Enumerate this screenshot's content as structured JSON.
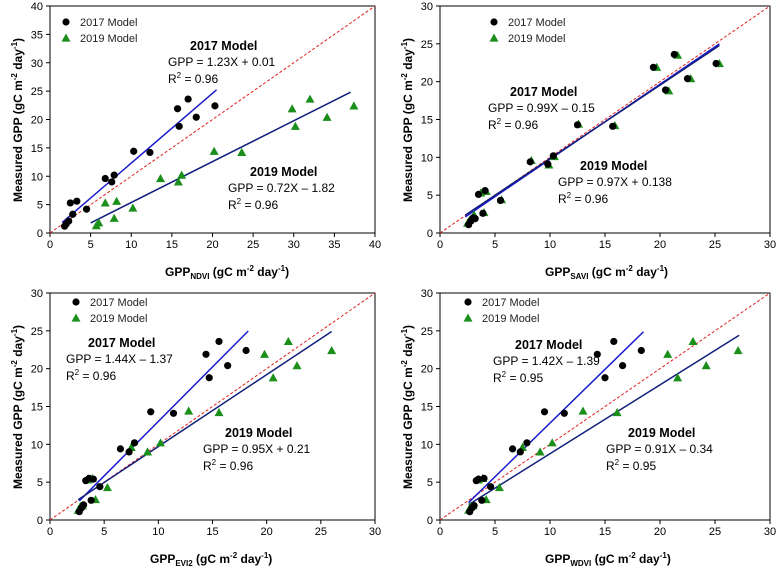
{
  "figure_colors": {
    "s2017": "#000000",
    "s2019": "#1a8f1a",
    "line2017": "#1a1acc",
    "line2019": "#10207a",
    "one_to_one": "#e02020",
    "axis": "#000000"
  },
  "chart_data": [
    {
      "type": "scatter",
      "ylabel": "Measured GPP (gC m-2 day-1)",
      "xlabel_main": "GPP",
      "xlabel_sub": "NDVI",
      "xlabel_rest": " (gC m",
      "xlim": [
        0,
        40
      ],
      "ylim": [
        0,
        40
      ],
      "xticks": [
        0,
        5,
        10,
        15,
        20,
        25,
        30,
        35,
        40
      ],
      "yticks": [
        0,
        5,
        10,
        15,
        20,
        25,
        30,
        35,
        40
      ],
      "legend": [
        "2017 Model",
        "2019 Model"
      ],
      "one_to_one_line": true,
      "series": [
        {
          "name": "2017 Model",
          "marker": "circle",
          "x": [
            1.8,
            2.0,
            2.3,
            2.5,
            2.8,
            3.3,
            4.5,
            6.8,
            7.6,
            7.9,
            10.3,
            12.3,
            15.7,
            15.9,
            17.0,
            18.0,
            20.3
          ],
          "y": [
            1.2,
            1.6,
            2.1,
            5.3,
            3.3,
            5.6,
            4.2,
            9.6,
            9.0,
            10.2,
            14.4,
            14.2,
            21.9,
            18.8,
            23.6,
            20.4,
            22.4
          ]
        },
        {
          "name": "2019 Model",
          "marker": "triangle",
          "x": [
            5.7,
            6.0,
            6.8,
            7.9,
            8.2,
            10.2,
            13.6,
            15.8,
            16.2,
            20.2,
            23.6,
            29.8,
            30.2,
            32.0,
            34.1,
            37.4
          ],
          "y": [
            1.3,
            1.8,
            5.3,
            2.6,
            5.6,
            4.4,
            9.6,
            9.0,
            10.2,
            14.4,
            14.2,
            21.9,
            18.8,
            23.6,
            20.4,
            22.4
          ]
        }
      ],
      "regressions": [
        {
          "name": "2017 Model",
          "slope": 1.23,
          "intercept": 0.01,
          "x_range": [
            1.5,
            20.5
          ],
          "label_title": "2017 Model",
          "label_eq": "GPP = 1.23X + 0.01",
          "label_r2_prefix": "R",
          "label_r2_value": " = 0.96"
        },
        {
          "name": "2019 Model",
          "slope": 0.72,
          "intercept": -1.82,
          "x_range": [
            5,
            37
          ],
          "label_title": "2019 Model",
          "label_eq": "GPP = 0.72X – 1.82",
          "label_r2_prefix": "R",
          "label_r2_value": " = 0.96"
        }
      ]
    },
    {
      "type": "scatter",
      "ylabel": "Measured GPP (gC m-2 day-1)",
      "xlabel_main": "GPP",
      "xlabel_sub": "SAVI",
      "xlabel_rest": " (gC m",
      "xlim": [
        0,
        30
      ],
      "ylim": [
        0,
        30
      ],
      "xticks": [
        0,
        5,
        10,
        15,
        20,
        25,
        30
      ],
      "yticks": [
        0,
        5,
        10,
        15,
        20,
        25,
        30
      ],
      "legend": [
        "2017 Model",
        "2019 Model"
      ],
      "one_to_one_line": true,
      "series": [
        {
          "name": "2017 Model",
          "marker": "circle",
          "x": [
            2.6,
            2.8,
            3.0,
            3.2,
            3.5,
            3.9,
            4.1,
            5.5,
            8.2,
            9.8,
            10.3,
            12.5,
            15.7,
            19.4,
            20.5,
            21.3,
            22.5,
            25.1
          ],
          "y": [
            1.1,
            1.6,
            2.0,
            1.9,
            5.1,
            2.6,
            5.6,
            4.3,
            9.4,
            9.1,
            10.2,
            14.3,
            14.1,
            21.9,
            18.9,
            23.6,
            20.4,
            22.4
          ]
        },
        {
          "name": "2019 Model",
          "marker": "triangle",
          "x": [
            2.5,
            2.7,
            2.9,
            3.1,
            3.7,
            4.0,
            4.2,
            5.6,
            8.3,
            9.9,
            10.4,
            12.6,
            15.9,
            19.7,
            20.8,
            21.6,
            22.8,
            25.4
          ],
          "y": [
            1.3,
            1.7,
            1.9,
            2.4,
            5.3,
            2.7,
            5.5,
            4.4,
            9.6,
            9.0,
            10.1,
            14.4,
            14.2,
            21.9,
            18.8,
            23.5,
            20.4,
            22.4
          ]
        }
      ],
      "regressions": [
        {
          "name": "2017 Model",
          "slope": 0.99,
          "intercept": -0.15,
          "x_range": [
            2.3,
            25.4
          ],
          "label_title": "2017 Model",
          "label_eq": "GPP = 0.99X – 0.15",
          "label_r2_prefix": "R",
          "label_r2_value": " = 0.96"
        },
        {
          "name": "2019 Model",
          "slope": 0.97,
          "intercept": 0.138,
          "x_range": [
            2.3,
            25.4
          ],
          "label_title": "2019 Model",
          "label_eq": "GPP = 0.97X + 0.138",
          "label_r2_prefix": "R",
          "label_r2_value": " = 0.96"
        }
      ]
    },
    {
      "type": "scatter",
      "ylabel": "Measured GPP (gC m-2 day-1)",
      "xlabel_main": "GPP",
      "xlabel_sub": "EVI2",
      "xlabel_rest": " (gC m",
      "xlim": [
        0,
        30
      ],
      "ylim": [
        0,
        30
      ],
      "xticks": [
        0,
        5,
        10,
        15,
        20,
        25,
        30
      ],
      "yticks": [
        0,
        5,
        10,
        15,
        20,
        25,
        30
      ],
      "legend": [
        "2017 Model",
        "2019 Model"
      ],
      "one_to_one_line": true,
      "series": [
        {
          "name": "2017 Model",
          "marker": "circle",
          "x": [
            2.7,
            2.9,
            3.1,
            3.3,
            3.6,
            3.8,
            4.0,
            4.6,
            6.5,
            7.3,
            7.8,
            9.3,
            11.4,
            14.4,
            14.7,
            15.6,
            16.4,
            18.1
          ],
          "y": [
            1.1,
            1.6,
            2.0,
            5.2,
            5.5,
            2.6,
            5.4,
            4.4,
            9.4,
            9.0,
            10.2,
            14.3,
            14.1,
            21.9,
            18.8,
            23.6,
            20.4,
            22.4
          ]
        },
        {
          "name": "2019 Model",
          "marker": "triangle",
          "x": [
            2.6,
            2.8,
            3.0,
            3.5,
            3.9,
            4.2,
            5.3,
            7.5,
            9.0,
            10.2,
            12.8,
            15.6,
            19.8,
            20.6,
            22.0,
            22.8,
            26.0
          ],
          "y": [
            1.3,
            1.8,
            1.9,
            5.3,
            5.5,
            2.7,
            4.3,
            9.6,
            9.0,
            10.2,
            14.4,
            14.2,
            21.9,
            18.8,
            23.6,
            20.4,
            22.4
          ]
        }
      ],
      "regressions": [
        {
          "name": "2017 Model",
          "slope": 1.44,
          "intercept": -1.37,
          "x_range": [
            2.7,
            18.3
          ],
          "label_title": "2017 Model",
          "label_eq": "GPP = 1.44X – 1.37",
          "label_r2_prefix": "R",
          "label_r2_value": " = 0.96"
        },
        {
          "name": "2019 Model",
          "slope": 0.95,
          "intercept": 0.21,
          "x_range": [
            2.6,
            26.0
          ],
          "label_title": "2019 Model",
          "label_eq": "GPP = 0.95X + 0.21",
          "label_r2_prefix": "R",
          "label_r2_value": " = 0.96"
        }
      ]
    },
    {
      "type": "scatter",
      "ylabel": "Measured GPP (gC m-2 day-1)",
      "xlabel_main": "GPP",
      "xlabel_sub": "WDVI",
      "xlabel_rest": " (gC m",
      "xlim": [
        0,
        30
      ],
      "ylim": [
        0,
        30
      ],
      "xticks": [
        0,
        5,
        10,
        15,
        20,
        25,
        30
      ],
      "yticks": [
        0,
        5,
        10,
        15,
        20,
        25,
        30
      ],
      "legend": [
        "2017 Model",
        "2019 Model"
      ],
      "one_to_one_line": true,
      "series": [
        {
          "name": "2017 Model",
          "marker": "circle",
          "x": [
            2.7,
            2.9,
            3.1,
            3.3,
            3.5,
            3.8,
            4.0,
            4.6,
            6.6,
            7.3,
            7.9,
            9.5,
            11.3,
            14.3,
            15.0,
            15.8,
            16.6,
            18.3
          ],
          "y": [
            1.1,
            1.6,
            1.9,
            5.2,
            5.4,
            2.6,
            5.5,
            4.4,
            9.4,
            9.0,
            10.2,
            14.3,
            14.1,
            21.9,
            18.8,
            23.6,
            20.4,
            22.4
          ]
        },
        {
          "name": "2019 Model",
          "marker": "triangle",
          "x": [
            2.6,
            2.8,
            3.0,
            3.5,
            3.9,
            4.2,
            5.4,
            7.5,
            9.1,
            10.2,
            13.0,
            16.1,
            20.7,
            21.6,
            23.0,
            24.2,
            27.1
          ],
          "y": [
            1.3,
            1.8,
            1.9,
            5.3,
            5.5,
            2.7,
            4.3,
            9.6,
            9.0,
            10.2,
            14.4,
            14.2,
            21.9,
            18.8,
            23.6,
            20.4,
            22.4
          ]
        }
      ],
      "regressions": [
        {
          "name": "2017 Model",
          "slope": 1.42,
          "intercept": -1.39,
          "x_range": [
            2.6,
            18.5
          ],
          "label_title": "2017 Model",
          "label_eq": "GPP = 1.42X – 1.39",
          "label_r2_prefix": "R",
          "label_r2_value": " = 0.95"
        },
        {
          "name": "2019 Model",
          "slope": 0.91,
          "intercept": -0.34,
          "x_range": [
            2.6,
            27.2
          ],
          "label_title": "2019 Model",
          "label_eq": "GPP = 0.91X – 0.34",
          "label_r2_prefix": "R",
          "label_r2_value": " = 0.95"
        }
      ]
    }
  ],
  "text_snippets": {
    "ylabel_sup1": "-2",
    "ylabel_mid": " day",
    "ylabel_sup2": "-1",
    "ylabel_end": ")",
    "ylabel_start": "Measured GPP (gC m",
    "r2_sup": "2",
    "xlabel_end": " day"
  }
}
